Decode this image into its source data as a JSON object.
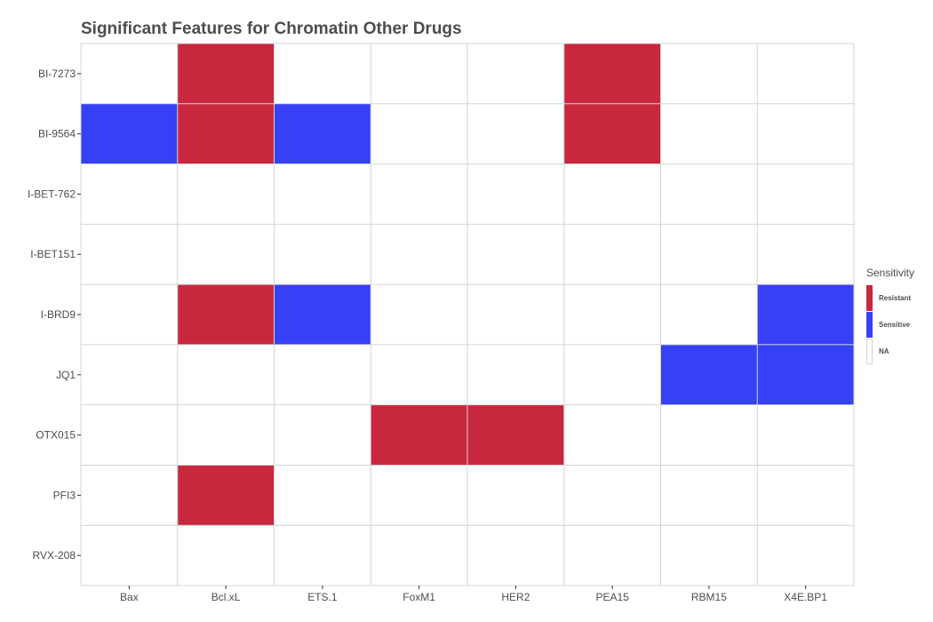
{
  "chart_data": {
    "type": "heatmap",
    "title": "Significant Features for Chromatin Other Drugs",
    "xlabel": "",
    "ylabel": "",
    "x": [
      "Bax",
      "Bcl.xL",
      "ETS.1",
      "FoxM1",
      "HER2",
      "PEA15",
      "RBM15",
      "X4E.BP1"
    ],
    "y": [
      "BI-7273",
      "BI-9564",
      "I-BET-762",
      "I-BET151",
      "I-BRD9",
      "JQ1",
      "OTX015",
      "PFI3",
      "RVX-208"
    ],
    "cells": [
      {
        "x": "Bcl.xL",
        "y": "BI-7273",
        "value": "Resistant"
      },
      {
        "x": "PEA15",
        "y": "BI-7273",
        "value": "Resistant"
      },
      {
        "x": "Bax",
        "y": "BI-9564",
        "value": "Sensitive"
      },
      {
        "x": "Bcl.xL",
        "y": "BI-9564",
        "value": "Resistant"
      },
      {
        "x": "ETS.1",
        "y": "BI-9564",
        "value": "Sensitive"
      },
      {
        "x": "PEA15",
        "y": "BI-9564",
        "value": "Resistant"
      },
      {
        "x": "Bcl.xL",
        "y": "I-BRD9",
        "value": "Resistant"
      },
      {
        "x": "ETS.1",
        "y": "I-BRD9",
        "value": "Sensitive"
      },
      {
        "x": "X4E.BP1",
        "y": "I-BRD9",
        "value": "Sensitive"
      },
      {
        "x": "RBM15",
        "y": "JQ1",
        "value": "Sensitive"
      },
      {
        "x": "X4E.BP1",
        "y": "JQ1",
        "value": "Sensitive"
      },
      {
        "x": "FoxM1",
        "y": "OTX015",
        "value": "Resistant"
      },
      {
        "x": "HER2",
        "y": "OTX015",
        "value": "Resistant"
      },
      {
        "x": "Bcl.xL",
        "y": "PFI3",
        "value": "Resistant"
      }
    ],
    "legend": {
      "title": "Sensitivity",
      "position": "right",
      "items": [
        {
          "label": "Resistant",
          "color": "#c8273e"
        },
        {
          "label": "Sensitive",
          "color": "#3640f5"
        },
        {
          "label": "NA",
          "color": "#ffffff"
        }
      ]
    },
    "grid": true
  },
  "colors": {
    "resistant": "#c8273e",
    "sensitive": "#3640f5",
    "na": "#ffffff",
    "grid": "#d4d4d4",
    "text": "#4d4d4d"
  }
}
